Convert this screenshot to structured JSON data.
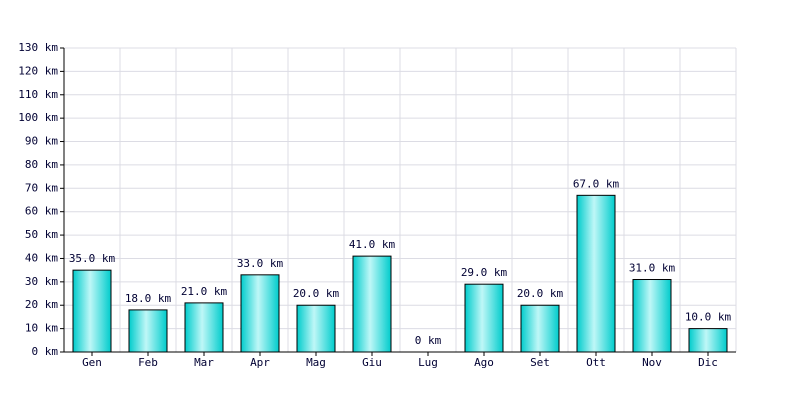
{
  "chart_data": {
    "type": "bar",
    "categories": [
      "Gen",
      "Feb",
      "Mar",
      "Apr",
      "Mag",
      "Giu",
      "Lug",
      "Ago",
      "Set",
      "Ott",
      "Nov",
      "Dic"
    ],
    "values": [
      35,
      18,
      21,
      33,
      20,
      41,
      0,
      29,
      20,
      67,
      31,
      10
    ],
    "value_labels": [
      "35.0 km",
      "18.0 km",
      "21.0 km",
      "33.0 km",
      "20.0 km",
      "41.0 km",
      "0 km",
      "29.0 km",
      "20.0 km",
      "67.0 km",
      "31.0 km",
      "10.0 km"
    ],
    "color": "#00cccc",
    "ylim": [
      0,
      130
    ],
    "yticks": [
      {
        "value": 0,
        "label": "0 km"
      },
      {
        "value": 10,
        "label": "10 km"
      },
      {
        "value": 20,
        "label": "20 km"
      },
      {
        "value": 30,
        "label": "30 km"
      },
      {
        "value": 40,
        "label": "40 km"
      },
      {
        "value": 50,
        "label": "50 km"
      },
      {
        "value": 60,
        "label": "60 km"
      },
      {
        "value": 70,
        "label": "70 km"
      },
      {
        "value": 80,
        "label": "80 km"
      },
      {
        "value": 90,
        "label": "90 km"
      },
      {
        "value": 100,
        "label": "100 km"
      },
      {
        "value": 110,
        "label": "110 km"
      },
      {
        "value": 120,
        "label": "120 km"
      },
      {
        "value": 130,
        "label": "130 km"
      }
    ],
    "grid": true
  }
}
